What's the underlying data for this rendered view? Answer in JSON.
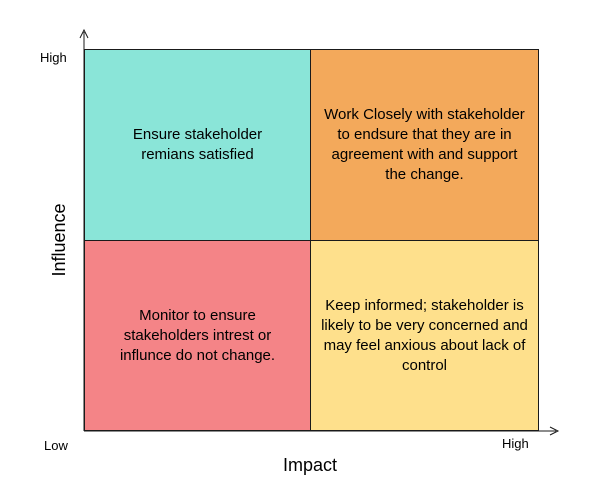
{
  "axes": {
    "x_title": "Impact",
    "y_title": "Influence",
    "x_low_label": "Low",
    "x_high_label": "High",
    "y_high_label": "High"
  },
  "quadrants": {
    "top_left": {
      "text": "Ensure stakeholder remians satisfied",
      "color": "#8ae5d8"
    },
    "top_right": {
      "text": "Work Closely with stakeholder to endsure that they are in agreement with and support the change.",
      "color": "#f3a95b"
    },
    "bottom_left": {
      "text": "Monitor to ensure stakeholders intrest or influnce do not change.",
      "color": "#f48487"
    },
    "bottom_right": {
      "text": "Keep informed; stakeholder is likely to be very concerned and may feel anxious about lack of control",
      "color": "#fee08c"
    }
  }
}
